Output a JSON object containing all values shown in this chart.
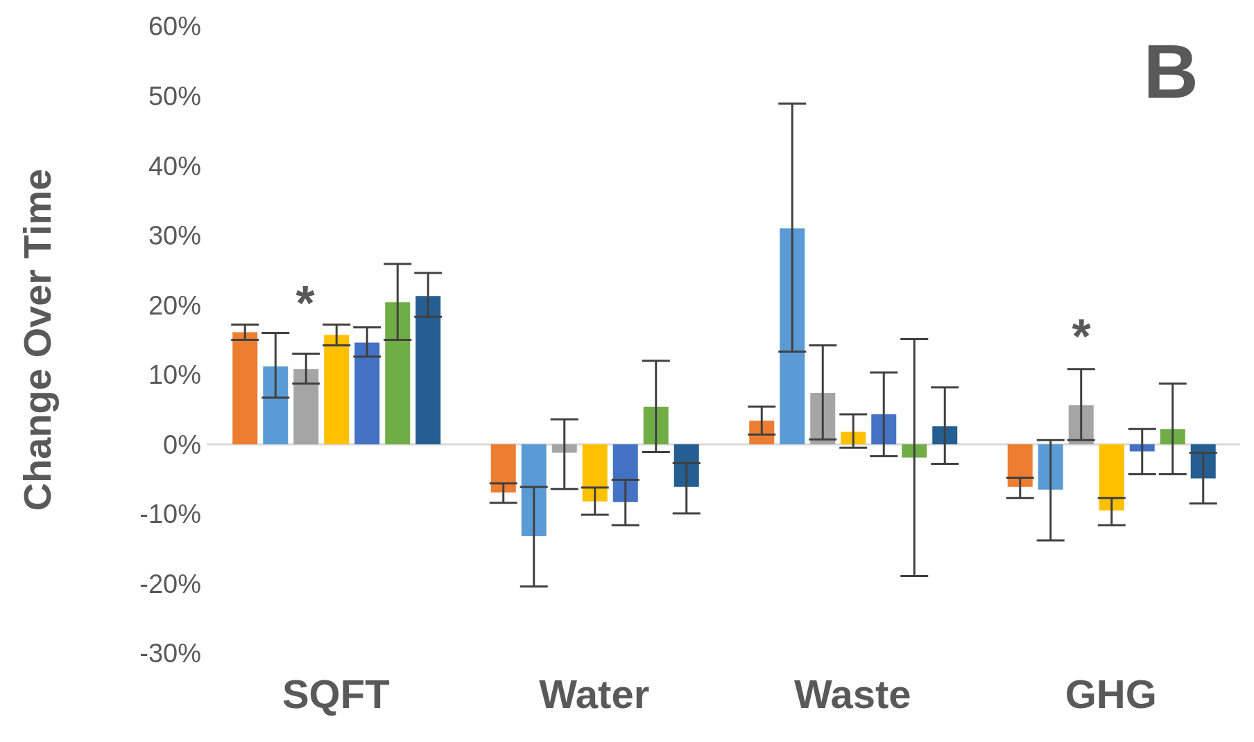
{
  "chart_data": {
    "type": "bar",
    "ylabel": "Change Over Time",
    "categories": [
      "SQFT",
      "Water",
      "Waste",
      "GHG"
    ],
    "series": [
      {
        "color": "#ed7d31",
        "values": [
          16.1,
          -6.9,
          3.4,
          -6.1
        ],
        "errors": [
          [
            15.0,
            17.2
          ],
          [
            -8.4,
            -5.6
          ],
          [
            1.4,
            5.4
          ],
          [
            -7.7,
            -4.8
          ]
        ]
      },
      {
        "color": "#5b9bd5",
        "values": [
          11.2,
          -13.2,
          31.0,
          -6.5
        ],
        "errors": [
          [
            6.7,
            16.0
          ],
          [
            -20.4,
            -6.1
          ],
          [
            13.3,
            48.9
          ],
          [
            -13.8,
            0.6
          ]
        ]
      },
      {
        "color": "#a5a5a5",
        "values": [
          10.8,
          -1.2,
          7.4,
          5.6
        ],
        "errors": [
          [
            8.7,
            13.0
          ],
          [
            -6.4,
            3.6
          ],
          [
            0.7,
            14.2
          ],
          [
            0.6,
            10.8
          ]
        ]
      },
      {
        "color": "#ffc000",
        "values": [
          15.7,
          -8.2,
          1.8,
          -9.5
        ],
        "errors": [
          [
            14.2,
            17.2
          ],
          [
            -10.1,
            -6.2
          ],
          [
            -0.5,
            4.3
          ],
          [
            -11.6,
            -7.7
          ]
        ]
      },
      {
        "color": "#4472c4",
        "values": [
          14.6,
          -8.3,
          4.3,
          -1.0
        ],
        "errors": [
          [
            12.6,
            16.8
          ],
          [
            -11.6,
            -5.1
          ],
          [
            -1.7,
            10.3
          ],
          [
            -4.3,
            2.2
          ]
        ]
      },
      {
        "color": "#70ad47",
        "values": [
          20.4,
          5.4,
          -1.9,
          2.2
        ],
        "errors": [
          [
            15.0,
            25.9
          ],
          [
            -1.1,
            12.0
          ],
          [
            -18.9,
            15.1
          ],
          [
            -4.3,
            8.7
          ]
        ]
      },
      {
        "color": "#255e91",
        "values": [
          21.3,
          -6.1,
          2.6,
          -4.9
        ],
        "errors": [
          [
            18.3,
            24.6
          ],
          [
            -9.9,
            -2.7
          ],
          [
            -2.8,
            8.2
          ],
          [
            -8.5,
            -1.2
          ]
        ]
      }
    ],
    "ylim": [
      -30,
      60
    ],
    "yticks": [
      {
        "value": -30,
        "label": "-30%"
      },
      {
        "value": -20,
        "label": "-20%"
      },
      {
        "value": -10,
        "label": "-10%"
      },
      {
        "value": 0,
        "label": "0%"
      },
      {
        "value": 10,
        "label": "10%"
      },
      {
        "value": 20,
        "label": "20%"
      },
      {
        "value": 30,
        "label": "30%"
      },
      {
        "value": 40,
        "label": "40%"
      },
      {
        "value": 50,
        "label": "50%"
      },
      {
        "value": 60,
        "label": "60%"
      }
    ],
    "grid": false,
    "legend": false,
    "annotations": [
      "B",
      "*",
      "*"
    ]
  }
}
